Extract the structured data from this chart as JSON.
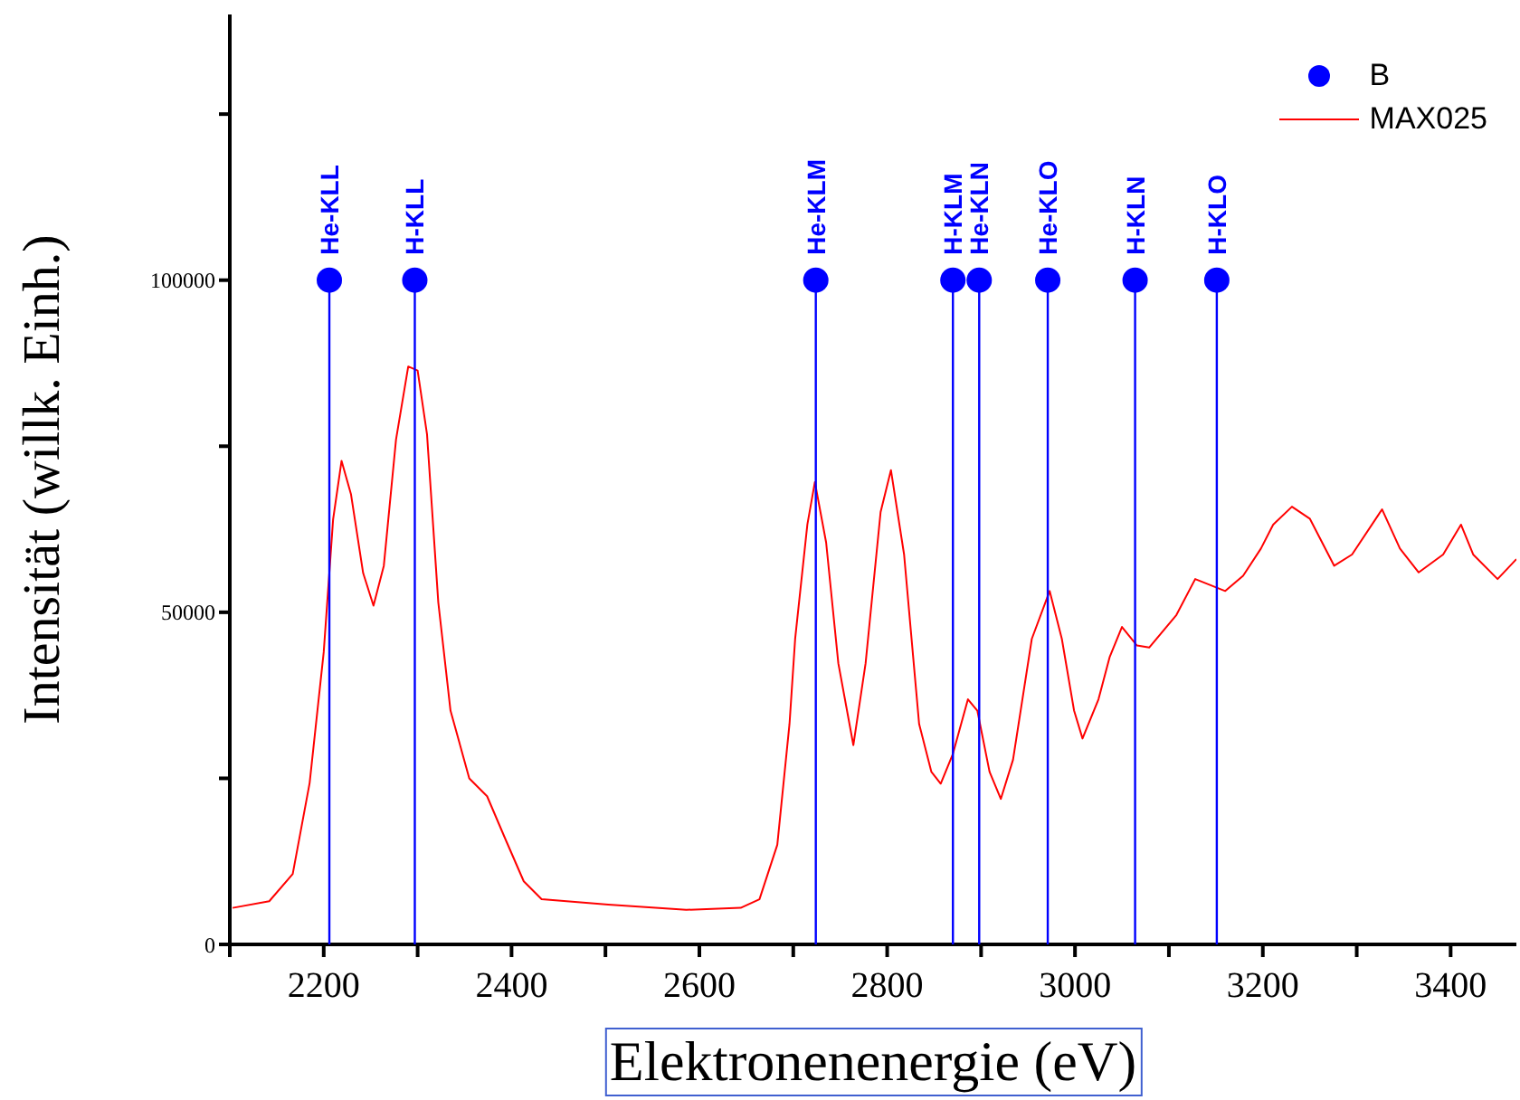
{
  "chart_data": {
    "type": "line",
    "xlabel": "Elektronenenergie (eV)",
    "ylabel": "Intensität (willk. Einh.)",
    "xlim": [
      2100,
      3470
    ],
    "xticks": [
      {
        "value": 2100,
        "label": null
      },
      2200,
      {
        "value": 2300,
        "label": null
      },
      2400,
      {
        "value": 2500,
        "label": null
      },
      2600,
      {
        "value": 2700,
        "label": null
      },
      2800,
      {
        "value": 2900,
        "label": null
      },
      3000,
      {
        "value": 3100,
        "label": null
      },
      3200,
      {
        "value": 3300,
        "label": null
      },
      3400
    ],
    "ylim": [
      0,
      140000
    ],
    "yticks": [
      0,
      {
        "value": 25000,
        "label": null
      },
      50000,
      {
        "value": 75000,
        "label": null
      },
      100000,
      {
        "value": 125000,
        "label": null
      }
    ],
    "grid": false,
    "legend": "top right",
    "series": [
      {
        "name": "B",
        "type": "lollipop",
        "marker": "circle",
        "color": "#0000ff",
        "x": [
          2206,
          2297,
          2724,
          2870,
          2898,
          2971,
          3064,
          3151
        ],
        "values": [
          100000,
          100000,
          100000,
          100000,
          100000,
          100000,
          100000,
          100000
        ]
      },
      {
        "name": "MAX025",
        "type": "line",
        "marker": "none",
        "color": "#ff0000",
        "x": [
          2103,
          2142,
          2167,
          2185,
          2200,
          2210,
          2219,
          2229,
          2242,
          2253,
          2264,
          2277,
          2290,
          2300,
          2310,
          2322,
          2335,
          2355,
          2374,
          2393,
          2413,
          2432,
          2503,
          2586,
          2644,
          2664,
          2683,
          2696,
          2702,
          2715,
          2723,
          2735,
          2748,
          2764,
          2777,
          2793,
          2804,
          2818,
          2834,
          2847,
          2857,
          2870,
          2886,
          2896,
          2909,
          2921,
          2934,
          2954,
          2973,
          2986,
          2999,
          3008,
          3025,
          3037,
          3050,
          3066,
          3079,
          3108,
          3128,
          3160,
          3179,
          3198,
          3211,
          3231,
          3250,
          3276,
          3295,
          3327,
          3346,
          3366,
          3392,
          3411,
          3424,
          3450,
          3470
        ],
        "values": [
          5500,
          6500,
          10600,
          24300,
          44000,
          64000,
          72800,
          67800,
          55900,
          51000,
          57000,
          76000,
          87000,
          86400,
          76800,
          51500,
          35200,
          25000,
          22300,
          16000,
          9500,
          6800,
          6000,
          5200,
          5500,
          6800,
          15000,
          33200,
          46000,
          63200,
          69600,
          60500,
          42300,
          30000,
          42300,
          65100,
          71400,
          58700,
          33200,
          26000,
          24200,
          28700,
          36900,
          35200,
          26000,
          21900,
          27800,
          46000,
          53200,
          46000,
          35200,
          31000,
          36900,
          43300,
          47800,
          45000,
          44700,
          49600,
          55000,
          53200,
          55500,
          59600,
          63200,
          65900,
          64100,
          57000,
          58700,
          65500,
          59600,
          56000,
          58700,
          63200,
          58700,
          55000,
          58000
        ]
      }
    ],
    "annotations": [
      {
        "text": "He-KLL",
        "x": 2206,
        "y": 100000
      },
      {
        "text": "H-KLL",
        "x": 2297,
        "y": 100000
      },
      {
        "text": "He-KLM",
        "x": 2724,
        "y": 100000
      },
      {
        "text": "H-KLM",
        "x": 2870,
        "y": 100000
      },
      {
        "text": "He-KLN",
        "x": 2898,
        "y": 100000
      },
      {
        "text": "He-KLO",
        "x": 2971,
        "y": 100000
      },
      {
        "text": "H-KLN",
        "x": 3064,
        "y": 100000
      },
      {
        "text": "H-KLO",
        "x": 3151,
        "y": 100000
      }
    ]
  }
}
